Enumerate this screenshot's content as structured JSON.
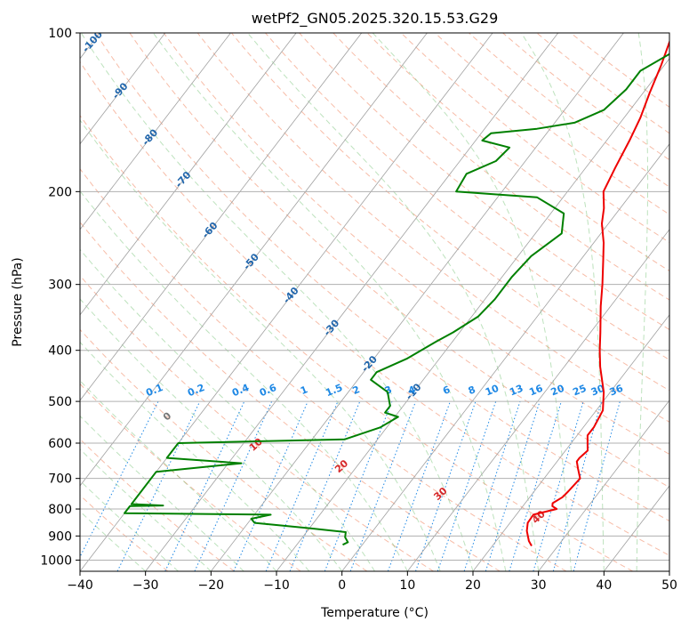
{
  "chart_data": {
    "type": "skew-t log-p",
    "title": "wetPf2_GN05.2025.320.15.53.G29",
    "xlabel": "Temperature (°C)",
    "ylabel": "Pressure (hPa)",
    "xlim": [
      -40,
      50
    ],
    "ylim": [
      1050,
      100
    ],
    "x_ticks": [
      -40,
      -30,
      -20,
      -10,
      0,
      10,
      20,
      30,
      40,
      50
    ],
    "x_tick_labels": [
      "−40",
      "−30",
      "−20",
      "−10",
      "0",
      "10",
      "20",
      "30",
      "40",
      "50"
    ],
    "y_ticks": [
      100,
      200,
      300,
      400,
      500,
      600,
      700,
      800,
      900,
      1000
    ],
    "y_tick_labels": [
      "100",
      "200",
      "300",
      "400",
      "500",
      "600",
      "700",
      "800",
      "900",
      "1000"
    ],
    "grid": true,
    "series": [
      {
        "name": "temperature",
        "color": "#ee0000",
        "points": [
          [
            940,
            26
          ],
          [
            920,
            25
          ],
          [
            880,
            23.5
          ],
          [
            850,
            22.7
          ],
          [
            820,
            22.6
          ],
          [
            800,
            25.5
          ],
          [
            790,
            24.5
          ],
          [
            780,
            24.2
          ],
          [
            760,
            25
          ],
          [
            740,
            25.2
          ],
          [
            700,
            25.5
          ],
          [
            670,
            24
          ],
          [
            650,
            23
          ],
          [
            640,
            23
          ],
          [
            620,
            23.4
          ],
          [
            600,
            22.5
          ],
          [
            580,
            21.6
          ],
          [
            560,
            21.6
          ],
          [
            520,
            21
          ],
          [
            480,
            19
          ],
          [
            430,
            15.5
          ],
          [
            400,
            13.5
          ],
          [
            370,
            11.5
          ],
          [
            330,
            8.5
          ],
          [
            300,
            6.2
          ],
          [
            270,
            3.5
          ],
          [
            250,
            1.5
          ],
          [
            230,
            -1
          ],
          [
            215,
            -2.5
          ],
          [
            200,
            -4.5
          ],
          [
            180,
            -5.5
          ],
          [
            160,
            -6.5
          ],
          [
            145,
            -7.5
          ],
          [
            130,
            -9
          ],
          [
            115,
            -10.5
          ],
          [
            100,
            -12.5
          ]
        ]
      },
      {
        "name": "dewpoint",
        "color": "#008000",
        "points": [
          [
            935,
            -3
          ],
          [
            925,
            -2.5
          ],
          [
            905,
            -3.5
          ],
          [
            885,
            -4
          ],
          [
            870,
            -10
          ],
          [
            850,
            -19
          ],
          [
            835,
            -20
          ],
          [
            820,
            -17.5
          ],
          [
            815,
            -40
          ],
          [
            790,
            -40
          ],
          [
            788,
            -35
          ],
          [
            783,
            -40
          ],
          [
            680,
            -40
          ],
          [
            655,
            -28
          ],
          [
            640,
            -40
          ],
          [
            600,
            -40
          ],
          [
            590,
            -15
          ],
          [
            560,
            -11
          ],
          [
            535,
            -9.5
          ],
          [
            525,
            -12
          ],
          [
            510,
            -12
          ],
          [
            480,
            -14
          ],
          [
            455,
            -18
          ],
          [
            440,
            -18
          ],
          [
            415,
            -15
          ],
          [
            385,
            -12.5
          ],
          [
            370,
            -11
          ],
          [
            345,
            -9
          ],
          [
            320,
            -8.5
          ],
          [
            290,
            -8.5
          ],
          [
            265,
            -8
          ],
          [
            240,
            -6
          ],
          [
            220,
            -8
          ],
          [
            205,
            -14
          ],
          [
            200,
            -27
          ],
          [
            185,
            -27.5
          ],
          [
            175,
            -24.5
          ],
          [
            165,
            -24
          ],
          [
            160,
            -29
          ],
          [
            155,
            -28.5
          ],
          [
            152,
            -22
          ],
          [
            148,
            -17
          ],
          [
            140,
            -14
          ],
          [
            128,
            -13
          ],
          [
            118,
            -13
          ],
          [
            108,
            -10
          ],
          [
            100,
            -9
          ]
        ]
      }
    ],
    "isotherm_labels": [
      -100,
      -90,
      -80,
      -70,
      -60,
      -50,
      -40,
      -30,
      -20,
      -10
    ],
    "isotherm_label_color": "#2166ac",
    "mixing_ratio_labels": [
      "0.1",
      "0.2",
      "0.4",
      "0.6",
      "1",
      "1.5",
      "2",
      "3",
      "4",
      "6",
      "8",
      "10",
      "13",
      "16",
      "20",
      "25",
      "30",
      "36"
    ],
    "mixing_ratio_values": [
      0.1,
      0.2,
      0.4,
      0.6,
      1,
      1.5,
      2,
      3,
      4,
      6,
      8,
      10,
      13,
      16,
      20,
      25,
      30,
      36
    ],
    "mixing_ratio_color": "#1e88e5",
    "dry_adiabat_labels": [
      0,
      10,
      20,
      30,
      40
    ],
    "dry_adiabat_label_colors": [
      "#777777",
      "#d62728",
      "#d62728",
      "#d62728",
      "#d62728"
    ]
  }
}
